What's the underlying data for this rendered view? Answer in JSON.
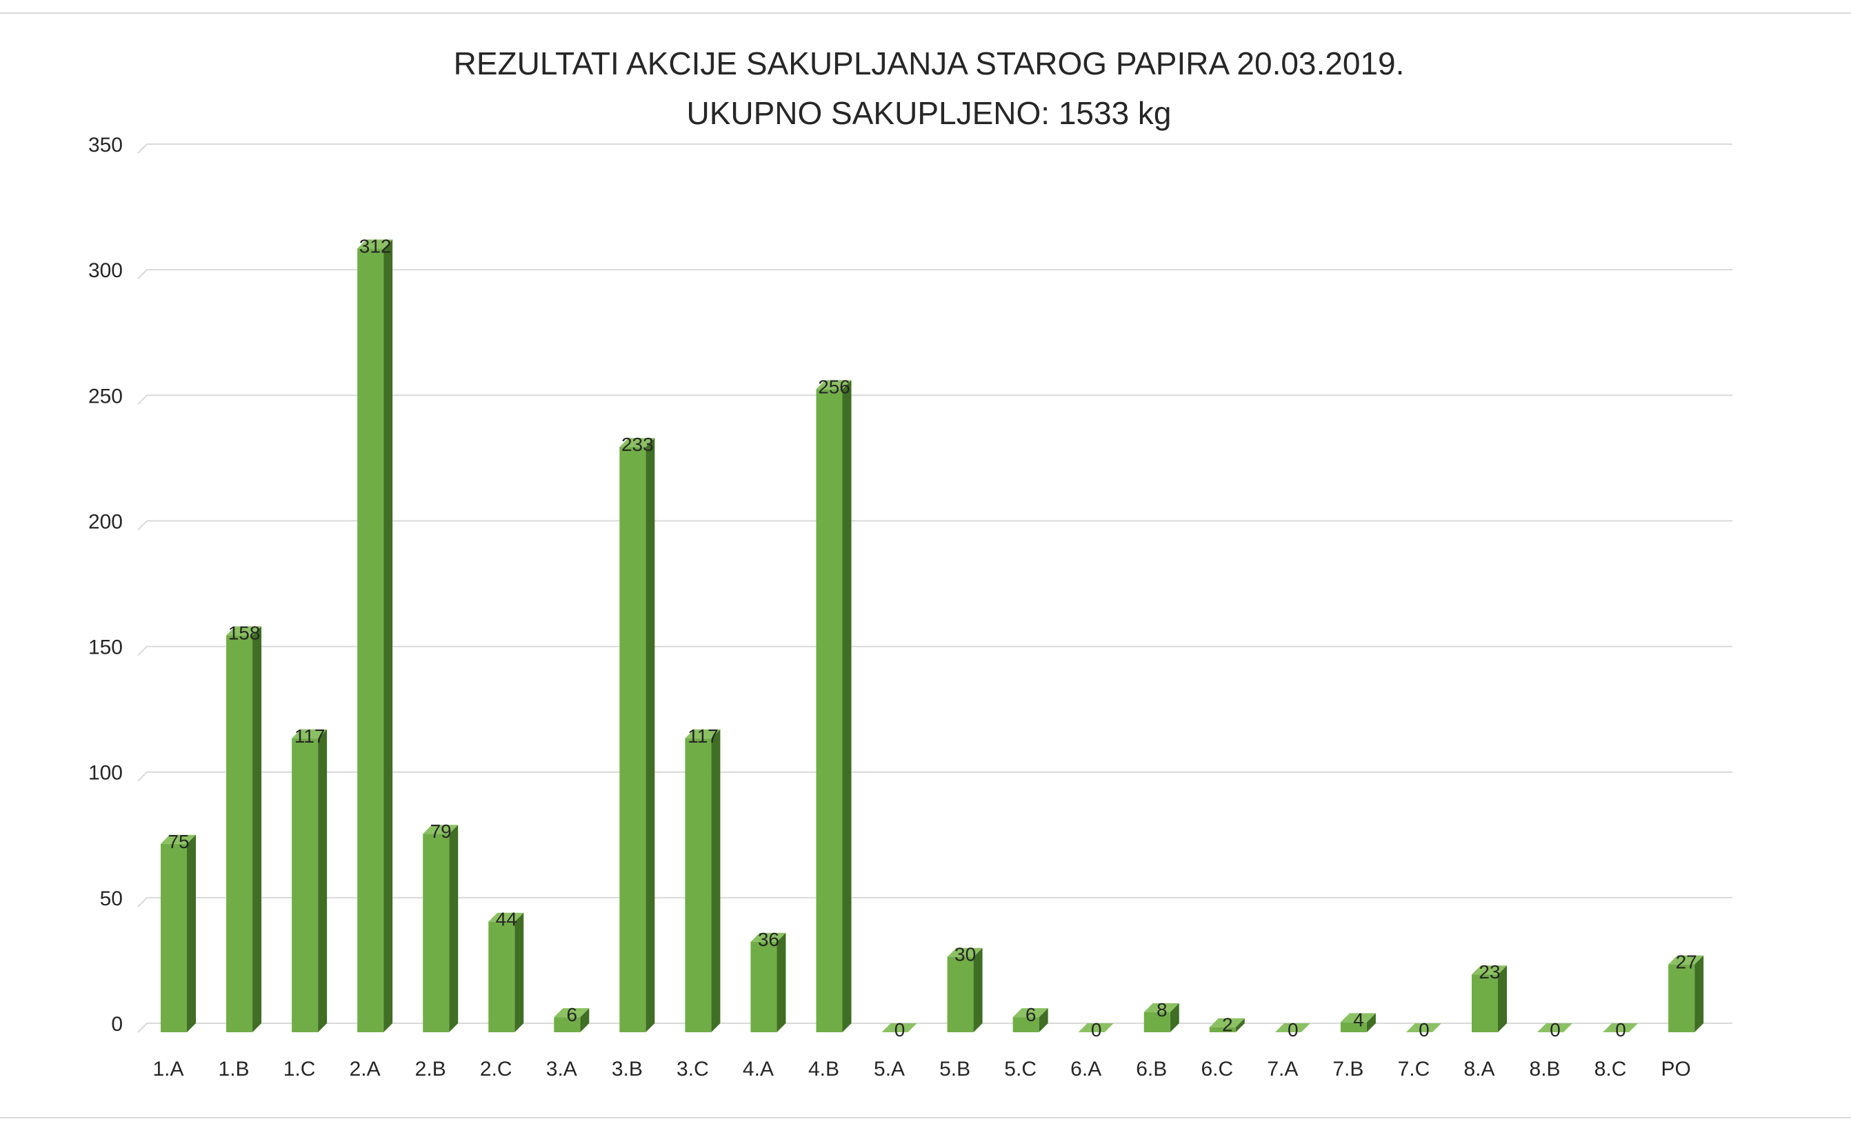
{
  "chart_data": {
    "type": "bar",
    "title": "REZULTATI AKCIJE SAKUPLJANJA STAROG PAPIRA 20.03.2019.",
    "subtitle": "UKUPNO SAKUPLJENO: 1533 kg",
    "xlabel": "",
    "ylabel": "",
    "categories": [
      "1.A",
      "1.B",
      "1.C",
      "2.A",
      "2.B",
      "2.C",
      "3.A",
      "3.B",
      "3.C",
      "4.A",
      "4.B",
      "5.A",
      "5.B",
      "5.C",
      "6.A",
      "6.B",
      "6.C",
      "7.A",
      "7.B",
      "7.C",
      "8.A",
      "8.B",
      "8.C",
      "PO"
    ],
    "values": [
      75,
      158,
      117,
      312,
      79,
      44,
      6,
      233,
      117,
      36,
      256,
      0,
      30,
      6,
      0,
      8,
      2,
      0,
      4,
      0,
      23,
      0,
      0,
      27
    ],
    "ylim": [
      0,
      350
    ],
    "yticks": [
      0,
      50,
      100,
      150,
      200,
      250,
      300,
      350
    ],
    "grid": true,
    "legend": "none",
    "bar_style": "3d",
    "colors": {
      "bar_front": "#70ad47",
      "bar_side": "#3f6e24",
      "bar_top": "#8cc163",
      "grid": "#d9d9d9",
      "text": "#262626"
    }
  }
}
